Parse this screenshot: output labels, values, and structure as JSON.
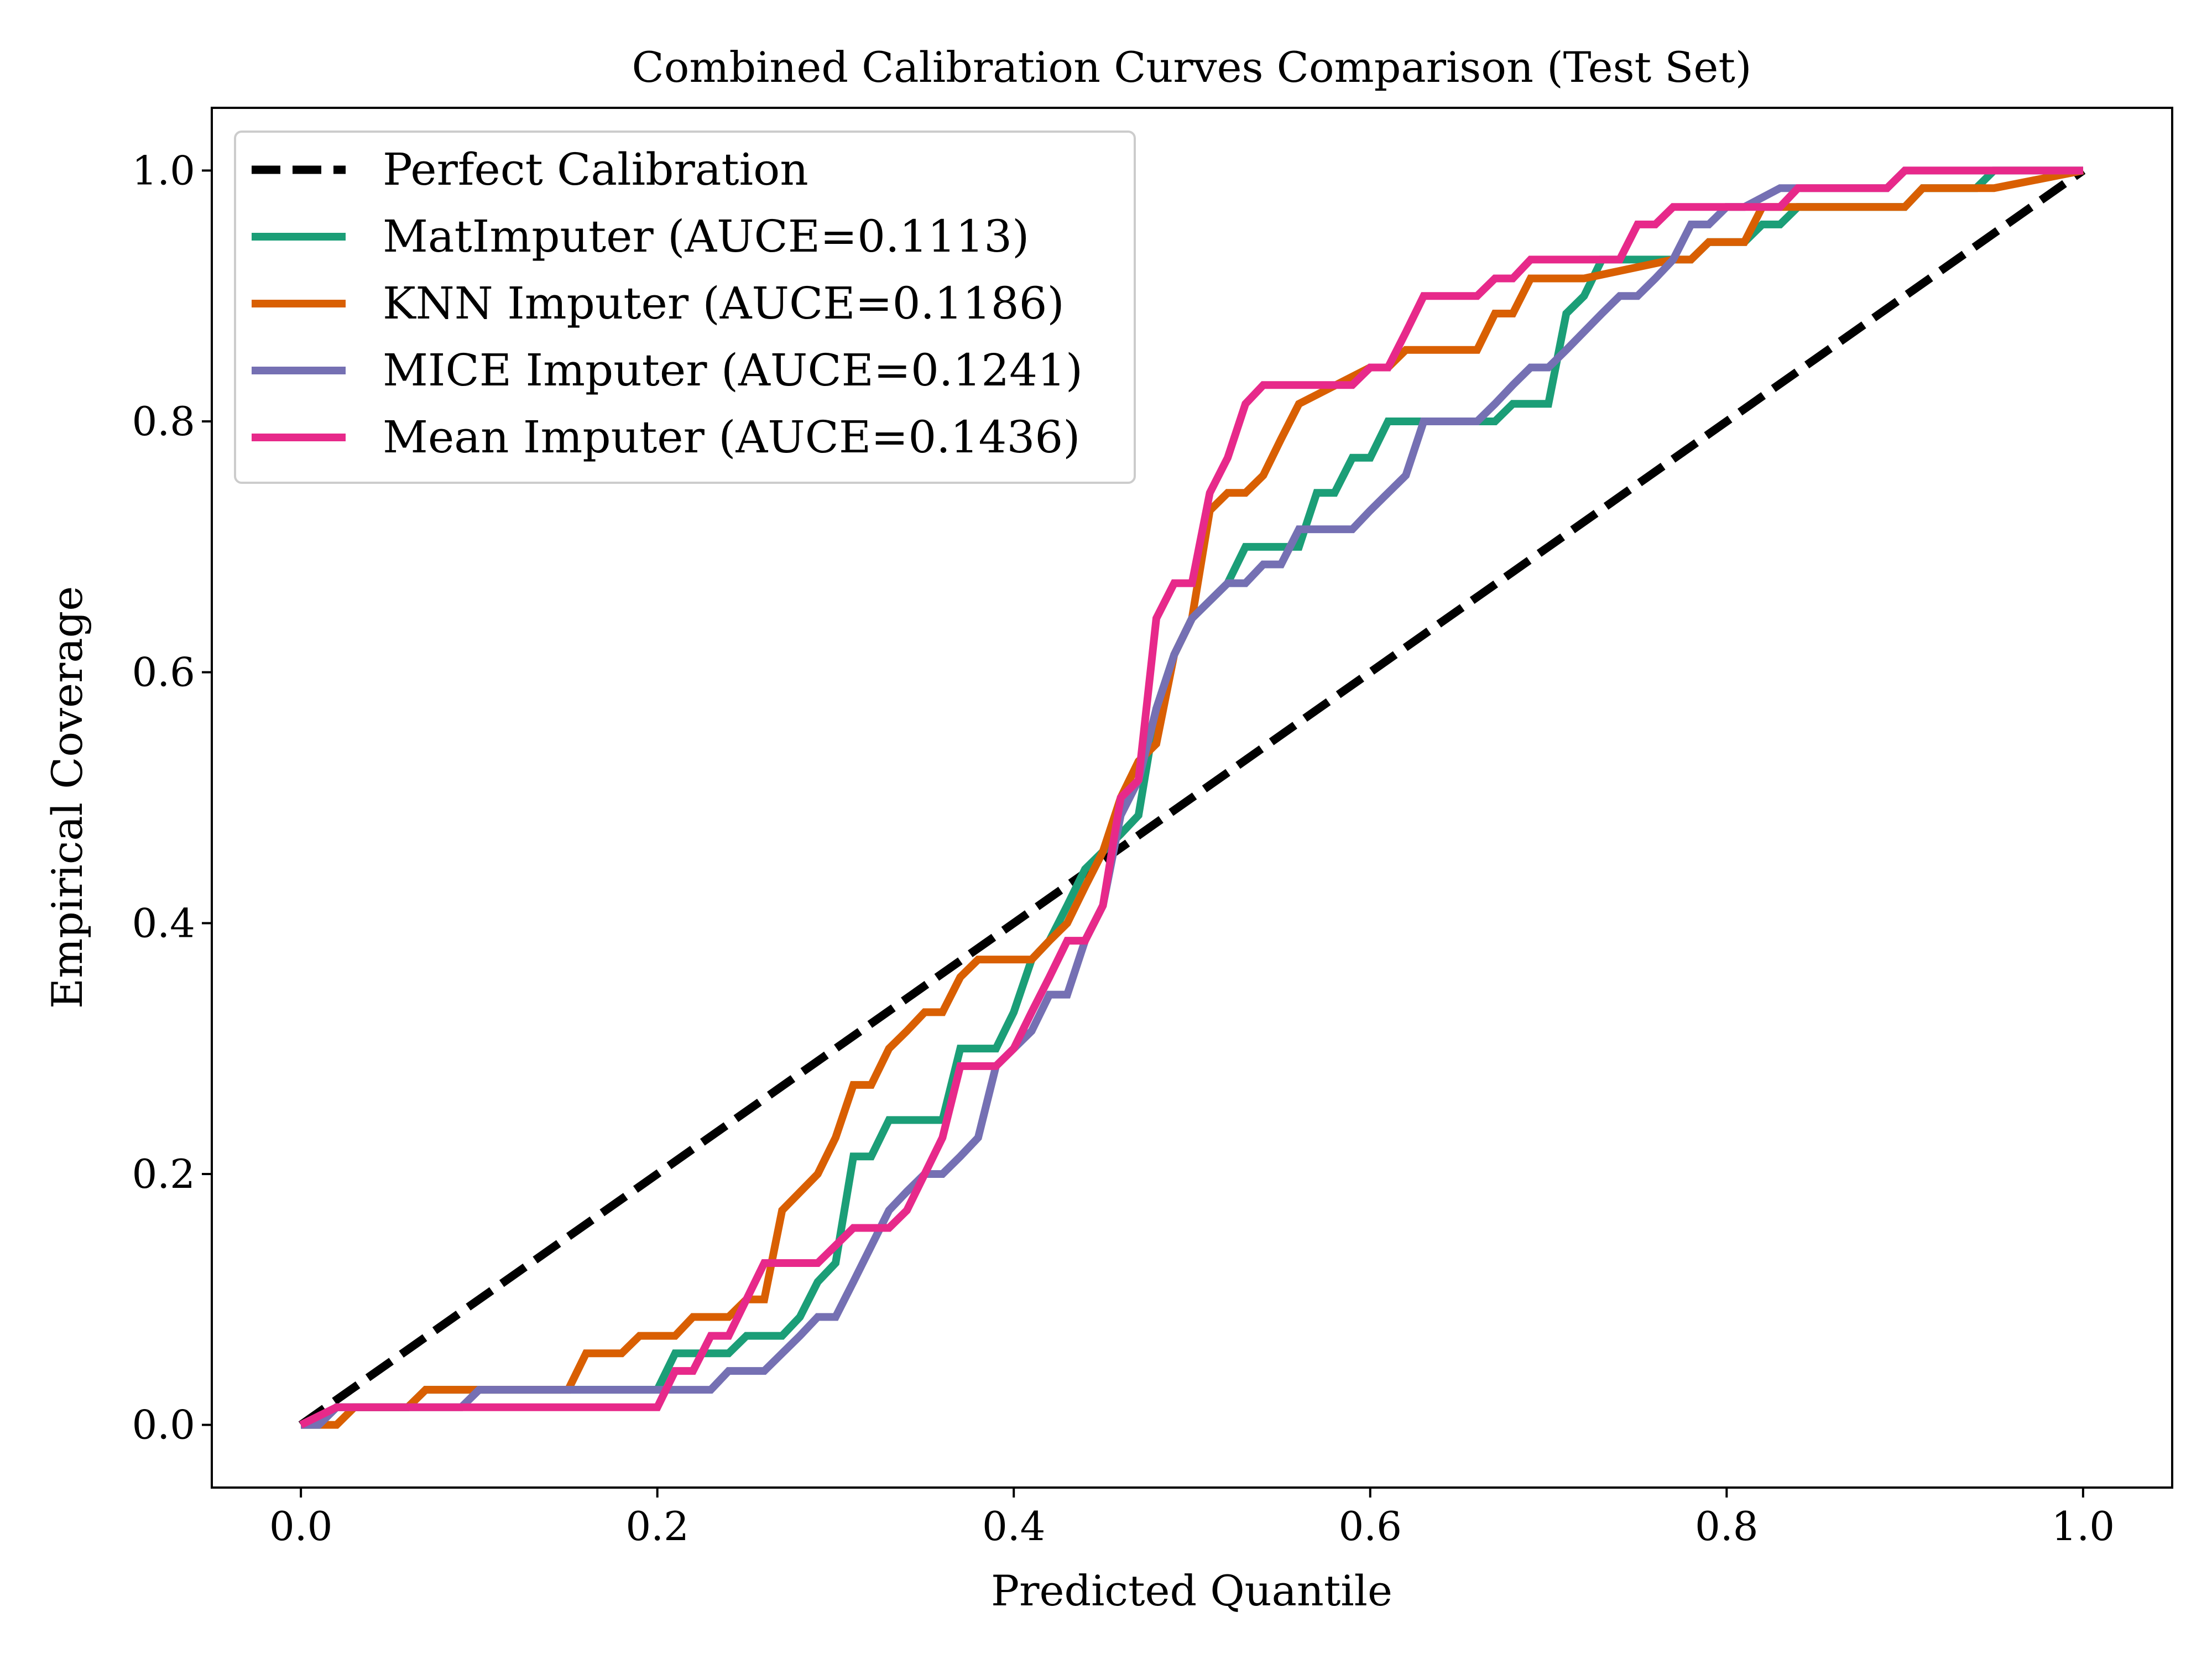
{
  "chart_data": {
    "type": "line",
    "title": "Combined Calibration Curves Comparison (Test Set)",
    "xlabel": "Predicted Quantile",
    "ylabel": "Empirical Coverage",
    "xlim": [
      -0.05,
      1.05
    ],
    "ylim": [
      -0.05,
      1.05
    ],
    "xticks": [
      0.0,
      0.2,
      0.4,
      0.6,
      0.8,
      1.0
    ],
    "yticks": [
      0.0,
      0.2,
      0.4,
      0.6,
      0.8,
      1.0
    ],
    "xtick_labels": [
      "0.0",
      "0.2",
      "0.4",
      "0.6",
      "0.8",
      "1.0"
    ],
    "ytick_labels": [
      "0.0",
      "0.2",
      "0.4",
      "0.6",
      "0.8",
      "1.0"
    ],
    "grid": false,
    "legend_position": "top-left",
    "series": [
      {
        "name": "Perfect Calibration",
        "color": "#000000",
        "dashed": true,
        "x": [
          0.0,
          1.0
        ],
        "y": [
          0.0,
          1.0
        ]
      },
      {
        "name": "MatImputer (AUCE=0.1113)",
        "color": "#1b9e77",
        "dashed": false,
        "x": [
          0.0,
          0.01,
          0.02,
          0.06,
          0.07,
          0.08,
          0.1,
          0.2,
          0.21,
          0.22,
          0.24,
          0.25,
          0.27,
          0.28,
          0.29,
          0.3,
          0.31,
          0.32,
          0.33,
          0.36,
          0.37,
          0.39,
          0.4,
          0.41,
          0.42,
          0.43,
          0.44,
          0.45,
          0.46,
          0.47,
          0.48,
          0.49,
          0.5,
          0.51,
          0.52,
          0.53,
          0.55,
          0.56,
          0.57,
          0.58,
          0.59,
          0.6,
          0.61,
          0.62,
          0.63,
          0.67,
          0.68,
          0.7,
          0.71,
          0.72,
          0.73,
          0.74,
          0.77,
          0.78,
          0.79,
          0.8,
          0.81,
          0.82,
          0.83,
          0.84,
          0.85,
          0.89,
          0.9,
          0.91,
          0.94,
          0.95,
          0.96,
          1.0
        ],
        "y": [
          0.0,
          0.0,
          0.014,
          0.014,
          0.028,
          0.028,
          0.028,
          0.028,
          0.057,
          0.057,
          0.057,
          0.071,
          0.071,
          0.086,
          0.114,
          0.129,
          0.214,
          0.214,
          0.243,
          0.243,
          0.3,
          0.3,
          0.329,
          0.371,
          0.386,
          0.414,
          0.443,
          0.457,
          0.471,
          0.486,
          0.571,
          0.614,
          0.643,
          0.657,
          0.671,
          0.7,
          0.7,
          0.7,
          0.743,
          0.743,
          0.771,
          0.771,
          0.8,
          0.8,
          0.8,
          0.8,
          0.814,
          0.814,
          0.886,
          0.9,
          0.929,
          0.929,
          0.929,
          0.929,
          0.943,
          0.943,
          0.943,
          0.957,
          0.957,
          0.971,
          0.971,
          0.971,
          0.971,
          0.986,
          0.986,
          1.0,
          1.0,
          1.0
        ]
      },
      {
        "name": "KNN Imputer (AUCE=0.1186)",
        "color": "#d95f02",
        "dashed": false,
        "x": [
          0.0,
          0.02,
          0.03,
          0.06,
          0.07,
          0.1,
          0.15,
          0.16,
          0.18,
          0.19,
          0.2,
          0.21,
          0.22,
          0.23,
          0.24,
          0.25,
          0.26,
          0.27,
          0.29,
          0.3,
          0.31,
          0.32,
          0.33,
          0.34,
          0.35,
          0.36,
          0.37,
          0.38,
          0.39,
          0.4,
          0.41,
          0.42,
          0.43,
          0.44,
          0.45,
          0.46,
          0.47,
          0.48,
          0.49,
          0.5,
          0.51,
          0.52,
          0.53,
          0.54,
          0.55,
          0.56,
          0.6,
          0.61,
          0.62,
          0.65,
          0.66,
          0.67,
          0.68,
          0.69,
          0.71,
          0.72,
          0.77,
          0.78,
          0.79,
          0.8,
          0.81,
          0.82,
          0.83,
          0.85,
          0.9,
          0.91,
          0.94,
          0.95,
          1.0
        ],
        "y": [
          0.0,
          0.0,
          0.014,
          0.014,
          0.028,
          0.028,
          0.028,
          0.057,
          0.057,
          0.071,
          0.071,
          0.071,
          0.086,
          0.086,
          0.086,
          0.1,
          0.1,
          0.171,
          0.2,
          0.229,
          0.271,
          0.271,
          0.3,
          0.314,
          0.329,
          0.329,
          0.357,
          0.371,
          0.371,
          0.371,
          0.371,
          0.386,
          0.4,
          0.429,
          0.457,
          0.5,
          0.529,
          0.543,
          0.614,
          0.643,
          0.729,
          0.743,
          0.743,
          0.757,
          0.786,
          0.814,
          0.843,
          0.843,
          0.857,
          0.857,
          0.857,
          0.886,
          0.886,
          0.914,
          0.914,
          0.914,
          0.929,
          0.929,
          0.943,
          0.943,
          0.943,
          0.971,
          0.971,
          0.971,
          0.971,
          0.986,
          0.986,
          0.986,
          1.0
        ]
      },
      {
        "name": "MICE Imputer (AUCE=0.1241)",
        "color": "#7570b3",
        "dashed": false,
        "x": [
          0.0,
          0.01,
          0.02,
          0.09,
          0.1,
          0.21,
          0.23,
          0.24,
          0.26,
          0.27,
          0.28,
          0.29,
          0.3,
          0.31,
          0.33,
          0.34,
          0.35,
          0.36,
          0.37,
          0.38,
          0.39,
          0.4,
          0.41,
          0.42,
          0.43,
          0.44,
          0.45,
          0.46,
          0.47,
          0.48,
          0.49,
          0.5,
          0.51,
          0.52,
          0.53,
          0.54,
          0.55,
          0.56,
          0.57,
          0.58,
          0.59,
          0.6,
          0.61,
          0.62,
          0.63,
          0.64,
          0.66,
          0.67,
          0.68,
          0.69,
          0.7,
          0.71,
          0.73,
          0.74,
          0.75,
          0.76,
          0.77,
          0.78,
          0.79,
          0.8,
          0.81,
          0.83,
          0.84,
          0.88,
          0.89,
          0.9,
          1.0
        ],
        "y": [
          0.0,
          0.0,
          0.014,
          0.014,
          0.028,
          0.028,
          0.028,
          0.043,
          0.043,
          0.057,
          0.071,
          0.086,
          0.086,
          0.114,
          0.171,
          0.186,
          0.2,
          0.2,
          0.214,
          0.229,
          0.286,
          0.3,
          0.314,
          0.343,
          0.343,
          0.386,
          0.414,
          0.486,
          0.514,
          0.571,
          0.614,
          0.643,
          0.657,
          0.671,
          0.671,
          0.686,
          0.686,
          0.714,
          0.714,
          0.714,
          0.714,
          0.729,
          0.743,
          0.757,
          0.8,
          0.8,
          0.8,
          0.814,
          0.829,
          0.843,
          0.843,
          0.857,
          0.886,
          0.9,
          0.9,
          0.914,
          0.929,
          0.957,
          0.957,
          0.971,
          0.971,
          0.986,
          0.986,
          0.986,
          0.986,
          1.0,
          1.0
        ]
      },
      {
        "name": "Mean Imputer (AUCE=0.1436)",
        "color": "#e7298a",
        "dashed": false,
        "x": [
          0.0,
          0.02,
          0.2,
          0.21,
          0.22,
          0.23,
          0.24,
          0.25,
          0.26,
          0.27,
          0.29,
          0.3,
          0.31,
          0.32,
          0.33,
          0.34,
          0.35,
          0.36,
          0.37,
          0.39,
          0.4,
          0.41,
          0.42,
          0.43,
          0.44,
          0.45,
          0.46,
          0.47,
          0.48,
          0.49,
          0.5,
          0.51,
          0.52,
          0.53,
          0.54,
          0.58,
          0.59,
          0.6,
          0.61,
          0.62,
          0.63,
          0.66,
          0.67,
          0.68,
          0.69,
          0.74,
          0.75,
          0.76,
          0.77,
          0.78,
          0.83,
          0.84,
          0.89,
          0.9,
          1.0
        ],
        "y": [
          0.0,
          0.014,
          0.014,
          0.043,
          0.043,
          0.071,
          0.071,
          0.1,
          0.129,
          0.129,
          0.129,
          0.143,
          0.157,
          0.157,
          0.157,
          0.171,
          0.2,
          0.229,
          0.286,
          0.286,
          0.3,
          0.329,
          0.357,
          0.386,
          0.386,
          0.414,
          0.5,
          0.514,
          0.643,
          0.671,
          0.671,
          0.743,
          0.771,
          0.814,
          0.829,
          0.829,
          0.829,
          0.843,
          0.843,
          0.871,
          0.9,
          0.9,
          0.914,
          0.914,
          0.929,
          0.929,
          0.957,
          0.957,
          0.971,
          0.971,
          0.971,
          0.986,
          0.986,
          1.0,
          1.0
        ]
      }
    ]
  }
}
